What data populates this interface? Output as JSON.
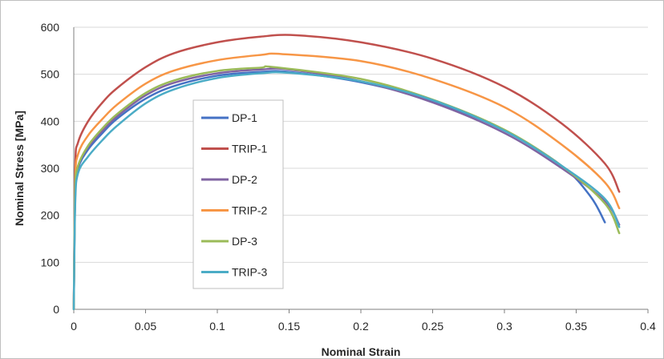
{
  "chart_data": {
    "type": "line",
    "title": "",
    "xlabel": "Nominal Strain",
    "ylabel": "Nominal Stress [MPa]",
    "xlim": [
      0,
      0.4
    ],
    "ylim": [
      0,
      600
    ],
    "x_ticks": [
      "0",
      "0.05",
      "0.1",
      "0.15",
      "0.2",
      "0.25",
      "0.3",
      "0.35",
      "0.4"
    ],
    "y_ticks": [
      "0",
      "100",
      "200",
      "300",
      "400",
      "500",
      "600"
    ],
    "grid": "horizontal",
    "legend_position": "center-left",
    "series": [
      {
        "name": "DP-1",
        "color": "#4472C4",
        "points": [
          [
            0,
            0
          ],
          [
            0.001,
            240
          ],
          [
            0.003,
            300
          ],
          [
            0.01,
            340
          ],
          [
            0.02,
            375
          ],
          [
            0.03,
            405
          ],
          [
            0.05,
            448
          ],
          [
            0.07,
            475
          ],
          [
            0.1,
            497
          ],
          [
            0.13,
            505
          ],
          [
            0.15,
            505
          ],
          [
            0.2,
            483
          ],
          [
            0.25,
            443
          ],
          [
            0.3,
            380
          ],
          [
            0.34,
            305
          ],
          [
            0.36,
            240
          ],
          [
            0.37,
            185
          ]
        ]
      },
      {
        "name": "TRIP-1",
        "color": "#C0504D",
        "points": [
          [
            0,
            0
          ],
          [
            0.001,
            300
          ],
          [
            0.003,
            355
          ],
          [
            0.01,
            400
          ],
          [
            0.02,
            440
          ],
          [
            0.03,
            470
          ],
          [
            0.05,
            515
          ],
          [
            0.07,
            545
          ],
          [
            0.1,
            568
          ],
          [
            0.13,
            580
          ],
          [
            0.155,
            583
          ],
          [
            0.2,
            568
          ],
          [
            0.25,
            533
          ],
          [
            0.3,
            473
          ],
          [
            0.34,
            395
          ],
          [
            0.37,
            310
          ],
          [
            0.38,
            250
          ]
        ]
      },
      {
        "name": "DP-2",
        "color": "#8064A2",
        "points": [
          [
            0,
            0
          ],
          [
            0.001,
            250
          ],
          [
            0.003,
            305
          ],
          [
            0.01,
            345
          ],
          [
            0.02,
            380
          ],
          [
            0.03,
            410
          ],
          [
            0.05,
            455
          ],
          [
            0.07,
            482
          ],
          [
            0.1,
            502
          ],
          [
            0.13,
            510
          ],
          [
            0.15,
            510
          ],
          [
            0.2,
            485
          ],
          [
            0.25,
            440
          ],
          [
            0.3,
            375
          ],
          [
            0.34,
            300
          ],
          [
            0.37,
            230
          ],
          [
            0.38,
            180
          ]
        ]
      },
      {
        "name": "TRIP-2",
        "color": "#F79646",
        "points": [
          [
            0,
            0
          ],
          [
            0.001,
            270
          ],
          [
            0.003,
            330
          ],
          [
            0.01,
            370
          ],
          [
            0.02,
            405
          ],
          [
            0.03,
            435
          ],
          [
            0.05,
            480
          ],
          [
            0.07,
            508
          ],
          [
            0.1,
            530
          ],
          [
            0.13,
            541
          ],
          [
            0.145,
            543
          ],
          [
            0.2,
            528
          ],
          [
            0.25,
            490
          ],
          [
            0.3,
            430
          ],
          [
            0.34,
            350
          ],
          [
            0.37,
            270
          ],
          [
            0.38,
            215
          ]
        ]
      },
      {
        "name": "DP-3",
        "color": "#9BBB59",
        "points": [
          [
            0,
            0
          ],
          [
            0.001,
            250
          ],
          [
            0.003,
            305
          ],
          [
            0.01,
            348
          ],
          [
            0.02,
            385
          ],
          [
            0.03,
            415
          ],
          [
            0.05,
            460
          ],
          [
            0.07,
            487
          ],
          [
            0.1,
            507
          ],
          [
            0.13,
            514
          ],
          [
            0.14,
            515
          ],
          [
            0.2,
            490
          ],
          [
            0.25,
            446
          ],
          [
            0.3,
            382
          ],
          [
            0.34,
            305
          ],
          [
            0.37,
            225
          ],
          [
            0.38,
            162
          ]
        ]
      },
      {
        "name": "TRIP-3",
        "color": "#4BACC6",
        "points": [
          [
            0,
            0
          ],
          [
            0.001,
            225
          ],
          [
            0.003,
            290
          ],
          [
            0.01,
            325
          ],
          [
            0.02,
            360
          ],
          [
            0.03,
            390
          ],
          [
            0.05,
            438
          ],
          [
            0.07,
            468
          ],
          [
            0.1,
            492
          ],
          [
            0.13,
            502
          ],
          [
            0.15,
            503
          ],
          [
            0.2,
            485
          ],
          [
            0.25,
            445
          ],
          [
            0.3,
            380
          ],
          [
            0.34,
            305
          ],
          [
            0.37,
            235
          ],
          [
            0.38,
            175
          ]
        ]
      }
    ]
  }
}
